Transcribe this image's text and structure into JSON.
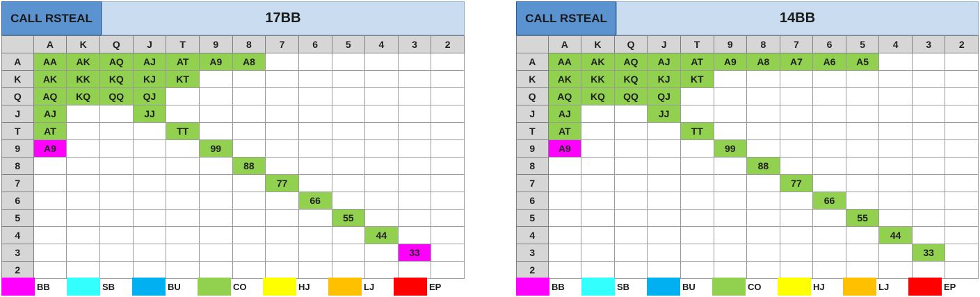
{
  "colors": {
    "BB": "#ff00ff",
    "SB": "#33ffff",
    "BU": "#00b0f0",
    "CO": "#92d050",
    "HJ": "#ffff00",
    "LJ": "#ffc000",
    "EP": "#ff0000"
  },
  "ranks": [
    "A",
    "K",
    "Q",
    "J",
    "T",
    "9",
    "8",
    "7",
    "6",
    "5",
    "4",
    "3",
    "2"
  ],
  "legend": [
    {
      "label": "BB",
      "pos": "BB"
    },
    {
      "label": "SB",
      "pos": "SB"
    },
    {
      "label": "BU",
      "pos": "BU"
    },
    {
      "label": "CO",
      "pos": "CO"
    },
    {
      "label": "HJ",
      "pos": "HJ"
    },
    {
      "label": "LJ",
      "pos": "LJ"
    },
    {
      "label": "EP",
      "pos": "EP"
    }
  ],
  "charts": [
    {
      "label": "CALL RSTEAL",
      "title": "17BB",
      "cells": [
        {
          "r": 0,
          "c": 0,
          "text": "AA",
          "pos": "CO"
        },
        {
          "r": 0,
          "c": 1,
          "text": "AK",
          "pos": "CO"
        },
        {
          "r": 0,
          "c": 2,
          "text": "AQ",
          "pos": "CO"
        },
        {
          "r": 0,
          "c": 3,
          "text": "AJ",
          "pos": "CO"
        },
        {
          "r": 0,
          "c": 4,
          "text": "AT",
          "pos": "CO"
        },
        {
          "r": 0,
          "c": 5,
          "text": "A9",
          "pos": "CO"
        },
        {
          "r": 0,
          "c": 6,
          "text": "A8",
          "pos": "CO"
        },
        {
          "r": 1,
          "c": 0,
          "text": "AK",
          "pos": "CO"
        },
        {
          "r": 1,
          "c": 1,
          "text": "KK",
          "pos": "CO"
        },
        {
          "r": 1,
          "c": 2,
          "text": "KQ",
          "pos": "CO"
        },
        {
          "r": 1,
          "c": 3,
          "text": "KJ",
          "pos": "CO"
        },
        {
          "r": 1,
          "c": 4,
          "text": "KT",
          "pos": "CO"
        },
        {
          "r": 2,
          "c": 0,
          "text": "AQ",
          "pos": "CO"
        },
        {
          "r": 2,
          "c": 1,
          "text": "KQ",
          "pos": "CO"
        },
        {
          "r": 2,
          "c": 2,
          "text": "QQ",
          "pos": "CO"
        },
        {
          "r": 2,
          "c": 3,
          "text": "QJ",
          "pos": "CO"
        },
        {
          "r": 3,
          "c": 0,
          "text": "AJ",
          "pos": "CO"
        },
        {
          "r": 3,
          "c": 3,
          "text": "JJ",
          "pos": "CO"
        },
        {
          "r": 4,
          "c": 0,
          "text": "AT",
          "pos": "CO"
        },
        {
          "r": 4,
          "c": 4,
          "text": "TT",
          "pos": "CO"
        },
        {
          "r": 5,
          "c": 0,
          "text": "A9",
          "pos": "BB"
        },
        {
          "r": 5,
          "c": 5,
          "text": "99",
          "pos": "CO"
        },
        {
          "r": 6,
          "c": 6,
          "text": "88",
          "pos": "CO"
        },
        {
          "r": 7,
          "c": 7,
          "text": "77",
          "pos": "CO"
        },
        {
          "r": 8,
          "c": 8,
          "text": "66",
          "pos": "CO"
        },
        {
          "r": 9,
          "c": 9,
          "text": "55",
          "pos": "CO"
        },
        {
          "r": 10,
          "c": 10,
          "text": "44",
          "pos": "CO"
        },
        {
          "r": 11,
          "c": 11,
          "text": "33",
          "pos": "BB"
        }
      ]
    },
    {
      "label": "CALL RSTEAL",
      "title": "14BB",
      "cells": [
        {
          "r": 0,
          "c": 0,
          "text": "AA",
          "pos": "CO"
        },
        {
          "r": 0,
          "c": 1,
          "text": "AK",
          "pos": "CO"
        },
        {
          "r": 0,
          "c": 2,
          "text": "AQ",
          "pos": "CO"
        },
        {
          "r": 0,
          "c": 3,
          "text": "AJ",
          "pos": "CO"
        },
        {
          "r": 0,
          "c": 4,
          "text": "AT",
          "pos": "CO"
        },
        {
          "r": 0,
          "c": 5,
          "text": "A9",
          "pos": "CO"
        },
        {
          "r": 0,
          "c": 6,
          "text": "A8",
          "pos": "CO"
        },
        {
          "r": 0,
          "c": 7,
          "text": "A7",
          "pos": "CO"
        },
        {
          "r": 0,
          "c": 8,
          "text": "A6",
          "pos": "CO"
        },
        {
          "r": 0,
          "c": 9,
          "text": "A5",
          "pos": "CO"
        },
        {
          "r": 1,
          "c": 0,
          "text": "AK",
          "pos": "CO"
        },
        {
          "r": 1,
          "c": 1,
          "text": "KK",
          "pos": "CO"
        },
        {
          "r": 1,
          "c": 2,
          "text": "KQ",
          "pos": "CO"
        },
        {
          "r": 1,
          "c": 3,
          "text": "KJ",
          "pos": "CO"
        },
        {
          "r": 1,
          "c": 4,
          "text": "KT",
          "pos": "CO"
        },
        {
          "r": 2,
          "c": 0,
          "text": "AQ",
          "pos": "CO"
        },
        {
          "r": 2,
          "c": 1,
          "text": "KQ",
          "pos": "CO"
        },
        {
          "r": 2,
          "c": 2,
          "text": "QQ",
          "pos": "CO"
        },
        {
          "r": 2,
          "c": 3,
          "text": "QJ",
          "pos": "CO"
        },
        {
          "r": 3,
          "c": 0,
          "text": "AJ",
          "pos": "CO"
        },
        {
          "r": 3,
          "c": 3,
          "text": "JJ",
          "pos": "CO"
        },
        {
          "r": 4,
          "c": 0,
          "text": "AT",
          "pos": "CO"
        },
        {
          "r": 4,
          "c": 4,
          "text": "TT",
          "pos": "CO"
        },
        {
          "r": 5,
          "c": 0,
          "text": "A9",
          "pos": "BB"
        },
        {
          "r": 5,
          "c": 5,
          "text": "99",
          "pos": "CO"
        },
        {
          "r": 6,
          "c": 6,
          "text": "88",
          "pos": "CO"
        },
        {
          "r": 7,
          "c": 7,
          "text": "77",
          "pos": "CO"
        },
        {
          "r": 8,
          "c": 8,
          "text": "66",
          "pos": "CO"
        },
        {
          "r": 9,
          "c": 9,
          "text": "55",
          "pos": "CO"
        },
        {
          "r": 10,
          "c": 10,
          "text": "44",
          "pos": "CO"
        },
        {
          "r": 11,
          "c": 11,
          "text": "33",
          "pos": "CO"
        }
      ]
    }
  ]
}
